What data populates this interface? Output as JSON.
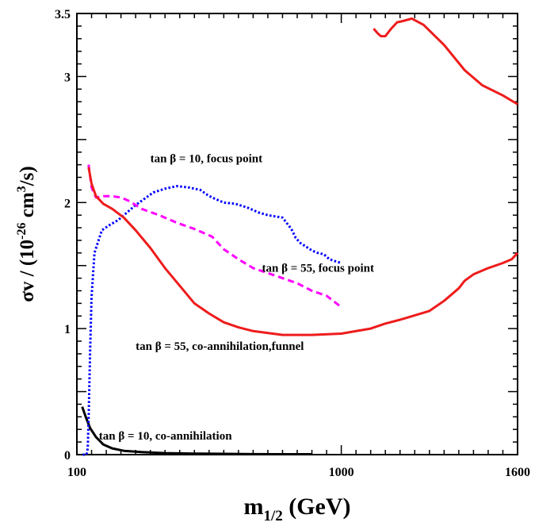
{
  "chart_data": {
    "type": "line",
    "title": "",
    "xlabel": {
      "main": "m",
      "sub": "1/2",
      "rest": " (GeV)"
    },
    "ylabel": {
      "prefix": "σv / (10",
      "exp1": "-26",
      "mid": " cm",
      "exp2": "3",
      "suffix": "/s)"
    },
    "xlim": [
      100,
      1600
    ],
    "ylim": [
      0,
      3.5
    ],
    "x_tick_labels": [
      {
        "value": 100,
        "label": "100"
      },
      {
        "value": 1000,
        "label": "1000"
      },
      {
        "value": 1600,
        "label": "1600"
      }
    ],
    "y_tick_labels": [
      {
        "value": 0,
        "label": "0"
      },
      {
        "value": 1,
        "label": "1"
      },
      {
        "value": 2,
        "label": "2"
      },
      {
        "value": 3,
        "label": "3"
      },
      {
        "value": 3.5,
        "label": "3.5"
      }
    ],
    "x_minor_step": 50,
    "y_major_step": 0.5,
    "y_minor_step": 0.1,
    "grid": false,
    "series": [
      {
        "id": "tb10-coann",
        "color": "#000000",
        "dash": "solid",
        "x": [
          118,
          130,
          145,
          165,
          190,
          220,
          260,
          320,
          400,
          500,
          600,
          700,
          800,
          900
        ],
        "y": [
          0.38,
          0.3,
          0.21,
          0.14,
          0.08,
          0.05,
          0.03,
          0.02,
          0.012,
          0.008,
          0.006,
          0.004,
          0.003,
          0.003
        ]
      },
      {
        "id": "tb10-focus",
        "color": "#0000ff",
        "dash": "dotted",
        "x": [
          120,
          133,
          137,
          140,
          145,
          150,
          160,
          185,
          210,
          240,
          270,
          300,
          330,
          360,
          400,
          440,
          480,
          520,
          545,
          560,
          580,
          600,
          640,
          680,
          720,
          750,
          800,
          830,
          845,
          860,
          880,
          900,
          920,
          940,
          960,
          985,
          1000
        ],
        "y": [
          0.0,
          0.0,
          0.05,
          0.28,
          0.82,
          1.25,
          1.6,
          1.78,
          1.82,
          1.86,
          1.92,
          1.98,
          2.03,
          2.08,
          2.11,
          2.13,
          2.12,
          2.1,
          2.06,
          2.04,
          2.02,
          2.0,
          1.99,
          1.96,
          1.92,
          1.9,
          1.88,
          1.79,
          1.72,
          1.68,
          1.65,
          1.62,
          1.6,
          1.59,
          1.55,
          1.53,
          1.52
        ]
      },
      {
        "id": "tb55-focus",
        "color": "#ff00ff",
        "dash": "dashed",
        "x": [
          140,
          150,
          165,
          190,
          220,
          250,
          280,
          320,
          380,
          440,
          500,
          560,
          600,
          650,
          700,
          750,
          800,
          850,
          900,
          950,
          1000
        ],
        "y": [
          2.3,
          2.12,
          2.04,
          2.05,
          2.05,
          2.04,
          2.01,
          1.95,
          1.9,
          1.84,
          1.79,
          1.73,
          1.63,
          1.55,
          1.48,
          1.44,
          1.4,
          1.36,
          1.3,
          1.26,
          1.17
        ]
      },
      {
        "id": "tb55-coann-low",
        "color": "#ee1c1c",
        "dash": "solid",
        "x": [
          140,
          150,
          165,
          190,
          220,
          260,
          300,
          350,
          400,
          450,
          500,
          550,
          600,
          650,
          700,
          800,
          900,
          1000,
          1100,
          1150,
          1200,
          1300,
          1350,
          1400,
          1420,
          1450,
          1500,
          1550,
          1580,
          1600
        ],
        "y": [
          2.28,
          2.15,
          2.05,
          1.99,
          1.95,
          1.88,
          1.78,
          1.64,
          1.48,
          1.34,
          1.2,
          1.12,
          1.05,
          1.01,
          0.98,
          0.95,
          0.95,
          0.96,
          1.0,
          1.04,
          1.07,
          1.14,
          1.22,
          1.32,
          1.38,
          1.43,
          1.48,
          1.52,
          1.55,
          1.6
        ]
      },
      {
        "id": "tb55-coann-high",
        "color": "#ee1c1c",
        "dash": "solid",
        "x": [
          1110,
          1125,
          1135,
          1150,
          1170,
          1190,
          1210,
          1240,
          1280,
          1350,
          1420,
          1480,
          1550,
          1600
        ],
        "y": [
          3.38,
          3.34,
          3.32,
          3.32,
          3.38,
          3.43,
          3.44,
          3.46,
          3.41,
          3.25,
          3.05,
          2.93,
          2.85,
          2.78
        ]
      }
    ],
    "annotations": [
      {
        "id": "focus-10",
        "prefix": "tan ",
        "greek": "β",
        "suffix": " = 10, focus point",
        "x": 350,
        "y": 2.32
      },
      {
        "id": "focus-55",
        "prefix": "tan ",
        "greek": "β",
        "suffix": " = 55, focus point",
        "x": 730,
        "y": 1.45
      },
      {
        "id": "coann-55",
        "prefix": "tan ",
        "greek": "β",
        "suffix": " = 55, co-annihilation,funnel",
        "x": 300,
        "y": 0.83
      },
      {
        "id": "coann-10",
        "prefix": "tan ",
        "greek": "β",
        "suffix": " = 10, co-annihilation",
        "x": 175,
        "y": 0.12
      }
    ]
  }
}
